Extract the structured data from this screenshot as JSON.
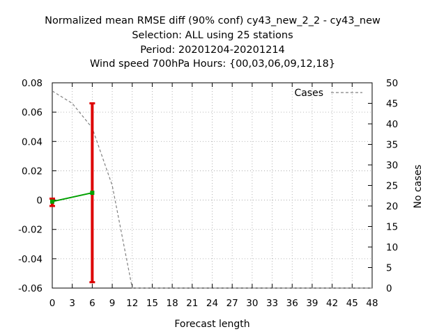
{
  "chart_data": {
    "type": "line",
    "title_lines": [
      "Normalized mean RMSE diff (90% conf) cy43_new_2_2 - cy43_new",
      "Selection: ALL using    25 stations",
      "Period: 20201204-20201214",
      "Wind speed 700hPa   Hours: {00,03,06,09,12,18}"
    ],
    "xlabel": "Forecast length",
    "ylabel": "",
    "y2label": "No cases",
    "xlim": [
      0,
      48
    ],
    "ylim": [
      -0.06,
      0.08
    ],
    "y2lim": [
      0,
      50
    ],
    "x_ticks": [
      "0",
      "3",
      "6",
      "9",
      "12",
      "15",
      "18",
      "21",
      "24",
      "27",
      "30",
      "33",
      "36",
      "39",
      "42",
      "45",
      "48"
    ],
    "y_ticks": [
      "0.08",
      "0.06",
      "0.04",
      "0.02",
      "0",
      "-0.02",
      "-0.04",
      "-0.06"
    ],
    "y2_ticks": [
      "50",
      "45",
      "40",
      "35",
      "30",
      "25",
      "20",
      "15",
      "10",
      "5",
      "0"
    ],
    "grid": true,
    "legend_position": "top-right",
    "series": [
      {
        "name": "",
        "axis": "left",
        "color": "#00a000",
        "x": [
          0,
          6
        ],
        "y": [
          -0.001,
          0.005
        ],
        "error_low": [
          -0.004,
          -0.056
        ],
        "error_high": [
          0.001,
          0.066
        ],
        "error_color": "#dd0000"
      },
      {
        "name": "Cases",
        "axis": "right",
        "color": "#808080",
        "style": "dashed",
        "x": [
          0,
          3,
          6,
          9,
          12,
          15,
          18,
          21,
          24,
          27,
          30,
          33,
          36,
          39,
          42,
          45,
          48
        ],
        "y": [
          48,
          45,
          39,
          25,
          0,
          0,
          0,
          0,
          0,
          0,
          0,
          0,
          0,
          0,
          0,
          0,
          0
        ]
      }
    ]
  }
}
